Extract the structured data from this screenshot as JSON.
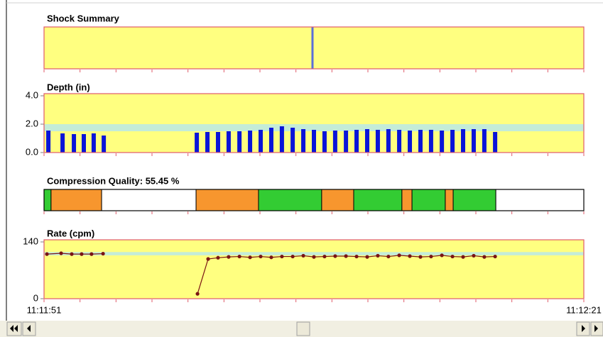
{
  "x_axis": {
    "xlim": [
      0,
      30
    ],
    "xticks": [
      {
        "value": 0,
        "label": "11:11:51"
      },
      {
        "value": 2,
        "label": null
      },
      {
        "value": 4,
        "label": null
      },
      {
        "value": 6,
        "label": null
      },
      {
        "value": 8,
        "label": null
      },
      {
        "value": 10,
        "label": null
      },
      {
        "value": 12,
        "label": null
      },
      {
        "value": 14,
        "label": null
      },
      {
        "value": 16,
        "label": null
      },
      {
        "value": 18,
        "label": null
      },
      {
        "value": 20,
        "label": null
      },
      {
        "value": 22,
        "label": null
      },
      {
        "value": 24,
        "label": null
      },
      {
        "value": 26,
        "label": null
      },
      {
        "value": 28,
        "label": null
      },
      {
        "value": 30,
        "label": "11:12:21"
      }
    ]
  },
  "chart_data": [
    {
      "type": "event",
      "title": "Shock Summary",
      "x": [
        14.92
      ],
      "color": "#5a6fd8"
    },
    {
      "type": "bar",
      "title": "Depth (in)",
      "ylim": [
        0,
        4
      ],
      "yticks": [
        {
          "value": 0,
          "label": "0.0"
        },
        {
          "value": 2,
          "label": "2.0"
        },
        {
          "value": 4,
          "label": "4.0"
        }
      ],
      "target_band": [
        1.5,
        2.0
      ],
      "color": "#0a14d8",
      "x": [
        0.24,
        1.03,
        1.66,
        2.21,
        2.76,
        3.32,
        8.49,
        9.08,
        9.67,
        10.26,
        10.86,
        11.45,
        12.04,
        12.63,
        13.22,
        13.82,
        14.41,
        15.0,
        15.59,
        16.18,
        16.78,
        17.37,
        17.96,
        18.55,
        19.14,
        19.74,
        20.33,
        20.92,
        21.51,
        22.11,
        22.7,
        23.29,
        23.88,
        24.47,
        25.07
      ],
      "values": [
        1.55,
        1.35,
        1.3,
        1.3,
        1.35,
        1.2,
        1.4,
        1.45,
        1.45,
        1.5,
        1.5,
        1.55,
        1.6,
        1.75,
        1.85,
        1.75,
        1.65,
        1.6,
        1.5,
        1.55,
        1.55,
        1.6,
        1.65,
        1.6,
        1.65,
        1.6,
        1.55,
        1.6,
        1.6,
        1.55,
        1.6,
        1.65,
        1.65,
        1.65,
        1.45
      ]
    },
    {
      "type": "segments",
      "title": "Compression Quality: 55.45 %",
      "segments": [
        {
          "start": 0,
          "end": 0.39,
          "color": "#33cc33"
        },
        {
          "start": 0.39,
          "end": 3.2,
          "color": "#f7962e"
        },
        {
          "start": 3.2,
          "end": 8.45,
          "color": "#ffffff"
        },
        {
          "start": 8.45,
          "end": 11.92,
          "color": "#f7962e"
        },
        {
          "start": 11.92,
          "end": 15.43,
          "color": "#33cc33"
        },
        {
          "start": 15.43,
          "end": 17.21,
          "color": "#f7962e"
        },
        {
          "start": 17.21,
          "end": 19.89,
          "color": "#33cc33"
        },
        {
          "start": 19.89,
          "end": 20.45,
          "color": "#f7962e"
        },
        {
          "start": 20.45,
          "end": 22.3,
          "color": "#33cc33"
        },
        {
          "start": 22.3,
          "end": 22.74,
          "color": "#f7962e"
        },
        {
          "start": 22.74,
          "end": 25.11,
          "color": "#33cc33"
        },
        {
          "start": 25.11,
          "end": 30,
          "color": "#ffffff"
        }
      ]
    },
    {
      "type": "line",
      "title": "Rate (cpm)",
      "ylim": [
        0,
        140
      ],
      "yticks": [
        0,
        140
      ],
      "target_band": [
        107,
        115
      ],
      "color": "#7a1414",
      "x": [
        0.16,
        0.95,
        1.54,
        2.09,
        2.64,
        3.28,
        null,
        8.53,
        9.12,
        9.67,
        10.26,
        10.86,
        11.45,
        12.04,
        12.63,
        13.22,
        13.82,
        14.41,
        15.0,
        15.59,
        16.18,
        16.78,
        17.37,
        17.96,
        18.55,
        19.14,
        19.74,
        20.33,
        20.92,
        21.51,
        22.11,
        22.7,
        23.29,
        23.88,
        24.47,
        25.07
      ],
      "values": [
        110,
        112,
        110,
        110,
        110,
        111,
        null,
        12,
        98,
        101,
        103,
        104,
        102,
        104,
        102,
        104,
        104,
        106,
        103,
        104,
        105,
        105,
        104,
        103,
        106,
        104,
        107,
        105,
        103,
        104,
        107,
        104,
        103,
        106,
        103,
        104
      ]
    }
  ]
}
